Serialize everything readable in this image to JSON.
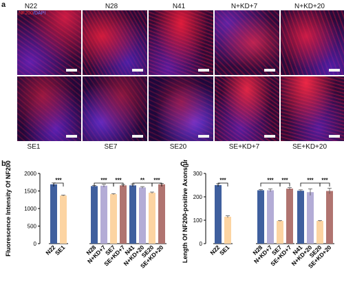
{
  "panels": {
    "a": "a",
    "b": "b",
    "c": "c"
  },
  "stain": {
    "red": "NF200",
    "sep": "/",
    "blue": "DAPI"
  },
  "top_row_labels": [
    "N22",
    "N28",
    "N41",
    "N+KD+7",
    "N+KD+20"
  ],
  "bottom_row_labels": [
    "SE1",
    "SE7",
    "SE20",
    "SE+KD+7",
    "SE+KD+20"
  ],
  "colors": {
    "blue": "#3f5f9e",
    "purple": "#b3acd6",
    "orange": "#fcd4a2",
    "brown": "#b07470"
  },
  "chart_data": [
    {
      "type": "bar",
      "panel": "b",
      "title": "",
      "ylabel": "Fluorescence Intensity Of NF200",
      "ylim": [
        0,
        2000
      ],
      "yticks": [
        0,
        500,
        1000,
        1500,
        2000
      ],
      "categories": [
        "N22",
        "SE1",
        "N28",
        "N+KD+7",
        "SE7",
        "SE+KD+7",
        "N41",
        "N+KD+20",
        "SE20",
        "SE+KD+20"
      ],
      "values": [
        1690,
        1370,
        1640,
        1650,
        1410,
        1660,
        1660,
        1600,
        1450,
        1690
      ],
      "errors": [
        40,
        15,
        15,
        40,
        15,
        25,
        40,
        25,
        20,
        25
      ],
      "bar_colors": [
        "blue",
        "orange",
        "blue",
        "purple",
        "orange",
        "brown",
        "blue",
        "purple",
        "orange",
        "brown"
      ],
      "significance": [
        {
          "from": 0,
          "to": 1,
          "label": "***"
        },
        {
          "from": 2,
          "to": 4,
          "label": "***"
        },
        {
          "from": 4,
          "to": 5,
          "label": "***"
        },
        {
          "from": 6,
          "to": 8,
          "label": "**"
        },
        {
          "from": 8,
          "to": 9,
          "label": "***"
        }
      ]
    },
    {
      "type": "bar",
      "panel": "c",
      "title": "",
      "ylabel": "Length Of NF200-positive Axons(μm)",
      "ylim": [
        0,
        300
      ],
      "yticks": [
        0,
        100,
        200,
        300
      ],
      "categories": [
        "N22",
        "SE1",
        "N28",
        "N+KD+7",
        "SE7",
        "SE+KD+7",
        "N41",
        "N+KD+20",
        "SE20",
        "SE+KD+20"
      ],
      "values": [
        250,
        115,
        228,
        228,
        97,
        235,
        226,
        220,
        97,
        225
      ],
      "errors": [
        6,
        4,
        3,
        6,
        2,
        5,
        4,
        14,
        2,
        12
      ],
      "bar_colors": [
        "blue",
        "orange",
        "blue",
        "purple",
        "orange",
        "brown",
        "blue",
        "purple",
        "orange",
        "brown"
      ],
      "significance": [
        {
          "from": 0,
          "to": 1,
          "label": "***"
        },
        {
          "from": 2,
          "to": 4,
          "label": "***"
        },
        {
          "from": 4,
          "to": 5,
          "label": "***"
        },
        {
          "from": 6,
          "to": 8,
          "label": "***"
        },
        {
          "from": 8,
          "to": 9,
          "label": "***"
        }
      ]
    }
  ]
}
